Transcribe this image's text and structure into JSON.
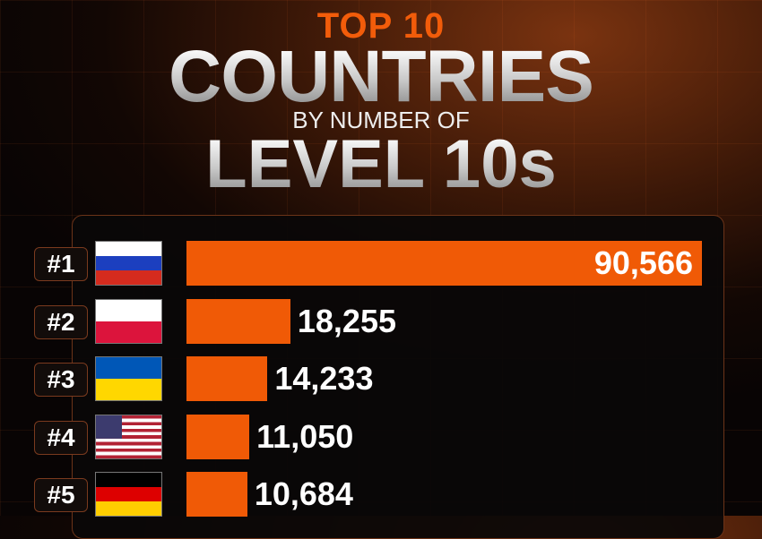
{
  "header": {
    "top": "TOP 10",
    "main": "COUNTRIES",
    "sub": "BY NUMBER OF",
    "bottom": "LEVEL 10s"
  },
  "colors": {
    "bar": "#f05a06",
    "accent": "#f25c0a",
    "background": "#0a0606"
  },
  "chart_data": {
    "type": "bar",
    "orientation": "horizontal",
    "title": "TOP 10 COUNTRIES BY NUMBER OF LEVEL 10s",
    "categories": [
      "Russia",
      "Poland",
      "Ukraine",
      "United States",
      "Germany"
    ],
    "ranks": [
      "#1",
      "#2",
      "#3",
      "#4",
      "#5"
    ],
    "flags": [
      "russia-flag",
      "poland-flag",
      "ukraine-flag",
      "usa-flag",
      "germany-flag"
    ],
    "values": [
      90566,
      18255,
      14233,
      11050,
      10684
    ],
    "labels": [
      "90,566",
      "18,255",
      "14,233",
      "11,050",
      "10,684"
    ],
    "xlim": [
      0,
      90566
    ],
    "grid": false
  }
}
